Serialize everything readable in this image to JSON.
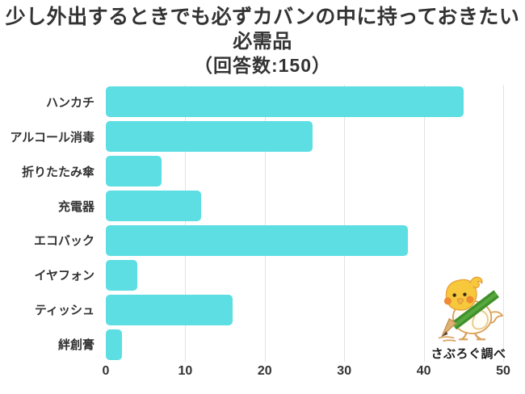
{
  "title": {
    "line1": "少し外出するときでも必ずカバンの中に持っておきたい",
    "line2": "必需品",
    "line3": "（回答数:150）"
  },
  "chart_data": {
    "type": "bar",
    "orientation": "horizontal",
    "title": "少し外出するときでも必ずカバンの中に持っておきたい必需品（回答数:150）",
    "categories": [
      "ハンカチ",
      "アルコール消毒",
      "折りたたみ傘",
      "充電器",
      "エコバック",
      "イヤフォン",
      "ティッシュ",
      "絆創膏"
    ],
    "values": [
      45,
      26,
      7,
      12,
      38,
      4,
      16,
      2
    ],
    "xlabel": "",
    "ylabel": "",
    "xlim": [
      0,
      50
    ],
    "x_ticks": [
      0,
      10,
      20,
      30,
      40,
      50
    ],
    "grid": true,
    "legend": "none",
    "bar_color": "#5CDEE2",
    "gridline_color": "#e3e3e3",
    "text_color": "#333333"
  },
  "credit": {
    "label": "さぶろぐ調べ",
    "mascot": "bird-with-pencil-mascot"
  }
}
